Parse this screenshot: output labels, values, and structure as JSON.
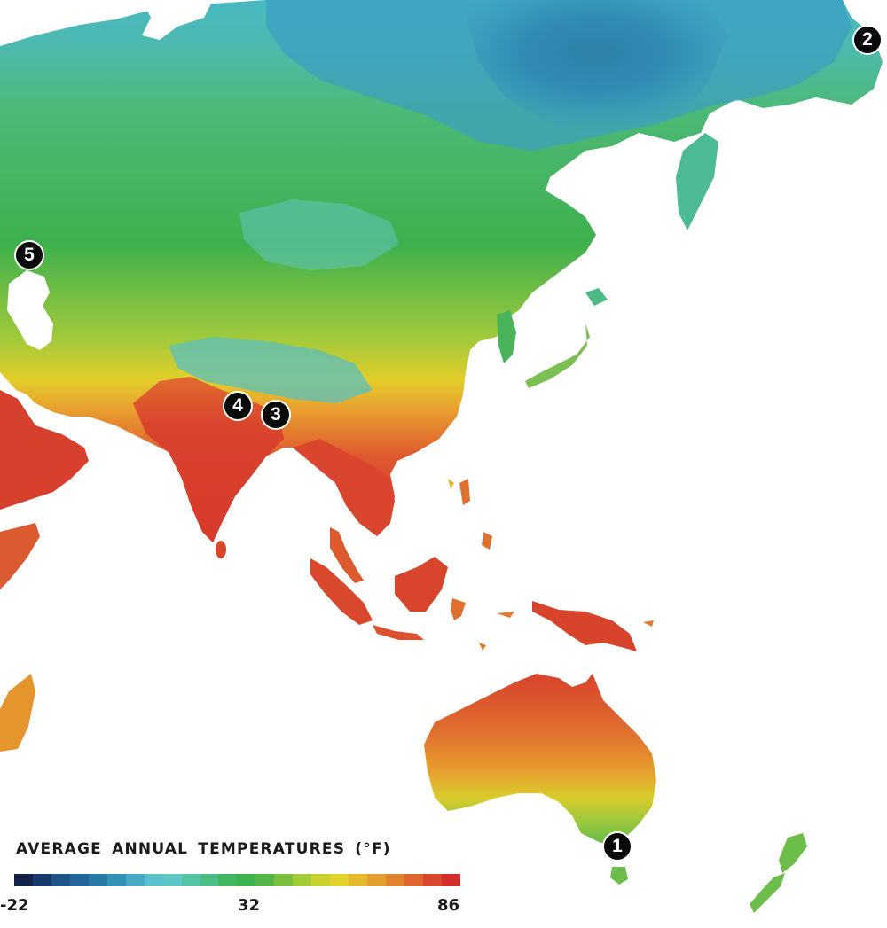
{
  "legend": {
    "title": "AVERAGE  ANNUAL TEMPERATURES (°F)",
    "ticks": {
      "min": "-22",
      "mid": "32",
      "max": "86"
    },
    "scale_colors": [
      "#13224a",
      "#173a6e",
      "#1d5489",
      "#23679a",
      "#2a7aa8",
      "#3492b8",
      "#4aa9c6",
      "#5bbfcd",
      "#5ec5c3",
      "#56c2a6",
      "#4dbc85",
      "#43b45f",
      "#3eb04d",
      "#55b548",
      "#7bbf3f",
      "#a2c936",
      "#c7d22e",
      "#e0d22a",
      "#e4b92c",
      "#e39f2e",
      "#e2832f",
      "#df6630",
      "#d9472d",
      "#d42d2c"
    ]
  },
  "markers": [
    {
      "number": "1",
      "place": "southeast-australia"
    },
    {
      "number": "2",
      "place": "kamchatka"
    },
    {
      "number": "3",
      "place": "eastern-himalaya"
    },
    {
      "number": "4",
      "place": "nepal"
    },
    {
      "number": "5",
      "place": "caspian-sea"
    }
  ]
}
